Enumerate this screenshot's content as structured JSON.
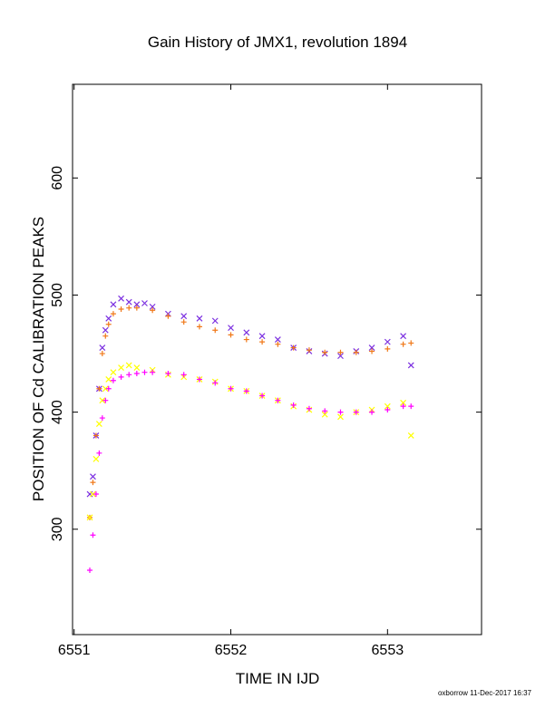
{
  "chart_data": {
    "type": "scatter",
    "title": "Gain History of JMX1, revolution 1894",
    "xlabel": "TIME IN IJD",
    "ylabel": "POSITION OF Cd CALIBRATION PEAKS",
    "xlim": [
      6550.99,
      6553.6
    ],
    "ylim": [
      210,
      680
    ],
    "x_ticks": [
      6551,
      6552,
      6553
    ],
    "y_ticks": [
      300,
      400,
      500,
      600
    ],
    "grid": false,
    "legend": "none",
    "footer": "oxborrow 11-Dec-2017 16:37",
    "series": [
      {
        "marker": "x",
        "color": "#7B2FE0",
        "x": [
          6551.1,
          6551.12,
          6551.14,
          6551.16,
          6551.18,
          6551.2,
          6551.22,
          6551.25,
          6551.3,
          6551.35,
          6551.4,
          6551.45,
          6551.5,
          6551.6,
          6551.7,
          6551.8,
          6551.9,
          6552.0,
          6552.1,
          6552.2,
          6552.3,
          6552.4,
          6552.5,
          6552.6,
          6552.7,
          6552.8,
          6552.9,
          6553.0,
          6553.1,
          6553.15
        ],
        "y": [
          330,
          345,
          380,
          420,
          455,
          470,
          480,
          492,
          497,
          494,
          492,
          493,
          490,
          484,
          482,
          480,
          478,
          472,
          468,
          465,
          462,
          455,
          452,
          450,
          448,
          452,
          455,
          460,
          465,
          440
        ]
      },
      {
        "marker": "+",
        "color": "#F07818",
        "x": [
          6551.1,
          6551.12,
          6551.14,
          6551.16,
          6551.18,
          6551.2,
          6551.22,
          6551.25,
          6551.3,
          6551.35,
          6551.4,
          6551.5,
          6551.6,
          6551.7,
          6551.8,
          6551.9,
          6552.0,
          6552.1,
          6552.2,
          6552.3,
          6552.4,
          6552.5,
          6552.6,
          6552.7,
          6552.8,
          6552.9,
          6553.0,
          6553.1,
          6553.15
        ],
        "y": [
          310,
          340,
          380,
          420,
          450,
          465,
          475,
          484,
          488,
          489,
          489,
          487,
          482,
          477,
          473,
          470,
          466,
          462,
          460,
          458,
          455,
          453,
          451,
          451,
          451,
          452,
          454,
          458,
          459
        ]
      },
      {
        "marker": "x",
        "color": "#FFFF00",
        "x": [
          6551.1,
          6551.12,
          6551.14,
          6551.16,
          6551.18,
          6551.2,
          6551.22,
          6551.25,
          6551.3,
          6551.35,
          6551.4,
          6551.5,
          6551.6,
          6551.7,
          6551.8,
          6551.9,
          6552.0,
          6552.1,
          6552.2,
          6552.3,
          6552.4,
          6552.5,
          6552.6,
          6552.7,
          6552.8,
          6552.9,
          6553.0,
          6553.1,
          6553.15
        ],
        "y": [
          310,
          330,
          360,
          390,
          410,
          420,
          428,
          434,
          438,
          440,
          438,
          436,
          432,
          430,
          428,
          426,
          420,
          418,
          414,
          410,
          405,
          402,
          398,
          396,
          400,
          402,
          405,
          408,
          380
        ]
      },
      {
        "marker": "+",
        "color": "#FF00FF",
        "x": [
          6551.1,
          6551.12,
          6551.14,
          6551.16,
          6551.18,
          6551.2,
          6551.22,
          6551.25,
          6551.3,
          6551.35,
          6551.4,
          6551.45,
          6551.5,
          6551.6,
          6551.7,
          6551.8,
          6551.9,
          6552.0,
          6552.1,
          6552.2,
          6552.3,
          6552.4,
          6552.5,
          6552.6,
          6552.7,
          6552.8,
          6552.9,
          6553.0,
          6553.1,
          6553.15
        ],
        "y": [
          265,
          295,
          330,
          365,
          395,
          410,
          420,
          427,
          430,
          432,
          433,
          434,
          434,
          433,
          432,
          428,
          425,
          420,
          418,
          414,
          410,
          406,
          403,
          401,
          400,
          400,
          400,
          402,
          405,
          405
        ]
      }
    ]
  }
}
